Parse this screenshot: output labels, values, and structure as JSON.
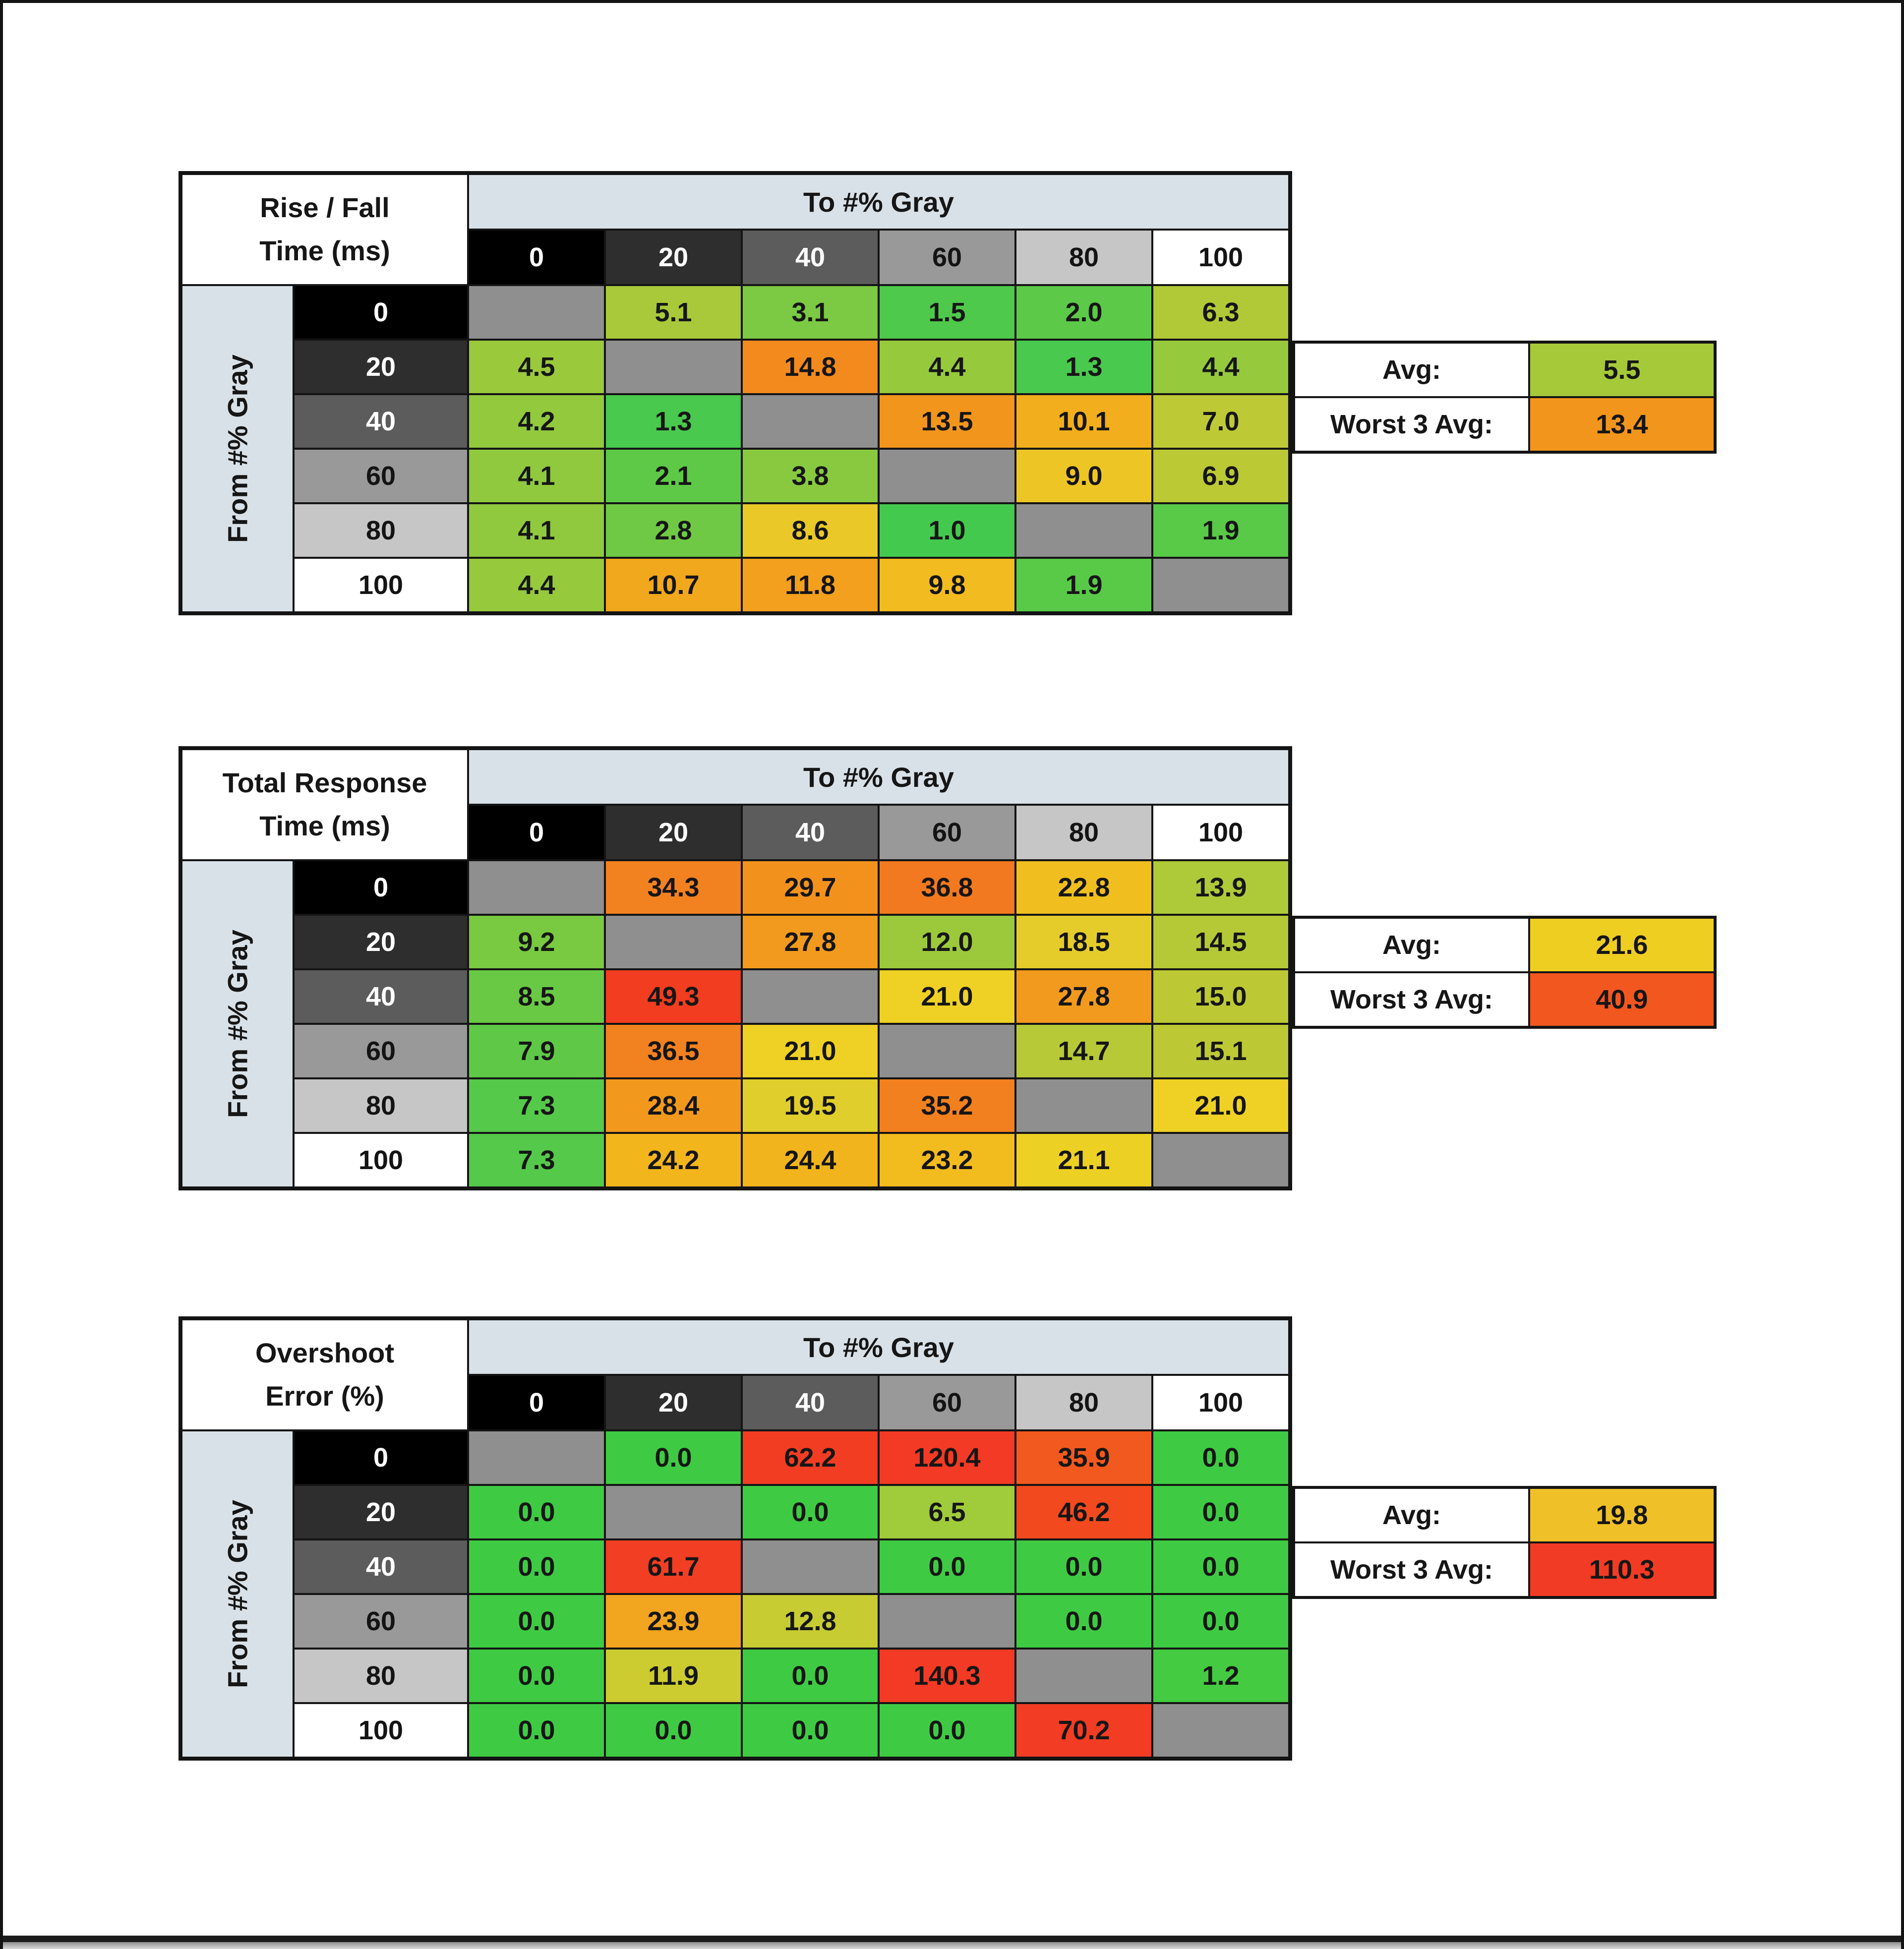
{
  "window": {
    "bg": "#ffffff",
    "frame_color": "#141414",
    "bottom_bar_color": "#8d8d8d"
  },
  "shared": {
    "avg_label": "Avg:",
    "worst_label": "Worst 3 Avg:",
    "band_bg": "#d9e1e8",
    "diag_bg": "#8f8f8f",
    "value_text_color": "#161616",
    "header_scale": [
      {
        "label": "0",
        "bg": "#000000",
        "fg": "#ffffff"
      },
      {
        "label": "20",
        "bg": "#2e2e2e",
        "fg": "#ffffff"
      },
      {
        "label": "40",
        "bg": "#5c5c5c",
        "fg": "#ffffff"
      },
      {
        "label": "60",
        "bg": "#999999",
        "fg": "#141414"
      },
      {
        "label": "80",
        "bg": "#c6c6c6",
        "fg": "#141414"
      },
      {
        "label": "100",
        "bg": "#ffffff",
        "fg": "#141414"
      }
    ]
  },
  "chart_data": [
    {
      "type": "heatmap",
      "name": "rise-fall-time",
      "title_lines": [
        "Rise / Fall",
        "Time (ms)"
      ],
      "col_axis_label": "To #% Gray",
      "row_axis_label": "From #% Gray",
      "gray_levels": [
        "0",
        "20",
        "40",
        "60",
        "80",
        "100"
      ],
      "rows": [
        {
          "from": "0",
          "cells": [
            null,
            {
              "v": "5.1",
              "bg": "#a9c93a"
            },
            {
              "v": "3.1",
              "bg": "#7cc943"
            },
            {
              "v": "1.5",
              "bg": "#4fc94b"
            },
            {
              "v": "2.0",
              "bg": "#5cc948"
            },
            {
              "v": "6.3",
              "bg": "#b2c937"
            }
          ]
        },
        {
          "from": "20",
          "cells": [
            {
              "v": "4.5",
              "bg": "#9ac93c"
            },
            null,
            {
              "v": "14.8",
              "bg": "#f28a1e"
            },
            {
              "v": "4.4",
              "bg": "#97c93c"
            },
            {
              "v": "1.3",
              "bg": "#49c94d"
            },
            {
              "v": "4.4",
              "bg": "#97c93c"
            }
          ]
        },
        {
          "from": "40",
          "cells": [
            {
              "v": "4.2",
              "bg": "#92c93d"
            },
            {
              "v": "1.3",
              "bg": "#49c94d"
            },
            null,
            {
              "v": "13.5",
              "bg": "#f2951d"
            },
            {
              "v": "10.1",
              "bg": "#f2ae1c"
            },
            {
              "v": "7.0",
              "bg": "#bdc935"
            }
          ]
        },
        {
          "from": "60",
          "cells": [
            {
              "v": "4.1",
              "bg": "#90c93d"
            },
            {
              "v": "2.1",
              "bg": "#5ec947"
            },
            {
              "v": "3.8",
              "bg": "#89c940"
            },
            null,
            {
              "v": "9.0",
              "bg": "#edc525"
            },
            {
              "v": "6.9",
              "bg": "#bbc935"
            }
          ]
        },
        {
          "from": "80",
          "cells": [
            {
              "v": "4.1",
              "bg": "#90c93d"
            },
            {
              "v": "2.8",
              "bg": "#6fc944"
            },
            {
              "v": "8.6",
              "bg": "#e9c828"
            },
            {
              "v": "1.0",
              "bg": "#44c94f"
            },
            null,
            {
              "v": "1.9",
              "bg": "#59c948"
            }
          ]
        },
        {
          "from": "100",
          "cells": [
            {
              "v": "4.4",
              "bg": "#97c93c"
            },
            {
              "v": "10.7",
              "bg": "#f2a81c"
            },
            {
              "v": "11.8",
              "bg": "#f2a01d"
            },
            {
              "v": "9.8",
              "bg": "#f2bb20"
            },
            {
              "v": "1.9",
              "bg": "#59c948"
            },
            null
          ]
        }
      ],
      "summary": {
        "avg": "5.5",
        "avg_bg": "#a6c93a",
        "worst": "13.4",
        "worst_bg": "#f2951d"
      }
    },
    {
      "type": "heatmap",
      "name": "total-response-time",
      "title_lines": [
        "Total Response",
        "Time (ms)"
      ],
      "col_axis_label": "To #% Gray",
      "row_axis_label": "From #% Gray",
      "gray_levels": [
        "0",
        "20",
        "40",
        "60",
        "80",
        "100"
      ],
      "rows": [
        {
          "from": "0",
          "cells": [
            null,
            {
              "v": "34.3",
              "bg": "#f2821f"
            },
            {
              "v": "29.7",
              "bg": "#f2921d"
            },
            {
              "v": "36.8",
              "bg": "#f2791f"
            },
            {
              "v": "22.8",
              "bg": "#f0bf1f"
            },
            {
              "v": "13.9",
              "bg": "#aeca38"
            }
          ]
        },
        {
          "from": "20",
          "cells": [
            {
              "v": "9.2",
              "bg": "#79c941"
            },
            null,
            {
              "v": "27.8",
              "bg": "#f29a1d"
            },
            {
              "v": "12.0",
              "bg": "#9cc93b"
            },
            {
              "v": "18.5",
              "bg": "#e5cc2a"
            },
            {
              "v": "14.5",
              "bg": "#b5c936"
            }
          ]
        },
        {
          "from": "40",
          "cells": [
            {
              "v": "8.5",
              "bg": "#6ac944"
            },
            {
              "v": "49.3",
              "bg": "#f23d20"
            },
            null,
            {
              "v": "21.0",
              "bg": "#eed124"
            },
            {
              "v": "27.8",
              "bg": "#f29a1d"
            },
            {
              "v": "15.0",
              "bg": "#bcc934"
            }
          ]
        },
        {
          "from": "60",
          "cells": [
            {
              "v": "7.9",
              "bg": "#5fc947"
            },
            {
              "v": "36.5",
              "bg": "#f2811f"
            },
            {
              "v": "21.0",
              "bg": "#eed124"
            },
            null,
            {
              "v": "14.7",
              "bg": "#b7c936"
            },
            {
              "v": "15.1",
              "bg": "#bdc934"
            }
          ]
        },
        {
          "from": "80",
          "cells": [
            {
              "v": "7.3",
              "bg": "#55c94a"
            },
            {
              "v": "28.4",
              "bg": "#f2991d"
            },
            {
              "v": "19.5",
              "bg": "#e0ce2c"
            },
            {
              "v": "35.2",
              "bg": "#f2801f"
            },
            null,
            {
              "v": "21.0",
              "bg": "#eed124"
            }
          ]
        },
        {
          "from": "100",
          "cells": [
            {
              "v": "7.3",
              "bg": "#55c94a"
            },
            {
              "v": "24.2",
              "bg": "#f2b51c"
            },
            {
              "v": "24.4",
              "bg": "#f2b41c"
            },
            {
              "v": "23.2",
              "bg": "#f2bb1e"
            },
            {
              "v": "21.1",
              "bg": "#edd024"
            },
            null
          ]
        }
      ],
      "summary": {
        "avg": "21.6",
        "avg_bg": "#efce22",
        "worst": "40.9",
        "worst_bg": "#f2571f"
      }
    },
    {
      "type": "heatmap",
      "name": "overshoot-error",
      "title_lines": [
        "Overshoot",
        "Error (%)"
      ],
      "col_axis_label": "To #% Gray",
      "row_axis_label": "From #% Gray",
      "gray_levels": [
        "0",
        "20",
        "40",
        "60",
        "80",
        "100"
      ],
      "rows": [
        {
          "from": "0",
          "cells": [
            null,
            {
              "v": "0.0",
              "bg": "#3ecb43"
            },
            {
              "v": "62.2",
              "bg": "#f23d23"
            },
            {
              "v": "120.4",
              "bg": "#f23a25"
            },
            {
              "v": "35.9",
              "bg": "#f2591e"
            },
            {
              "v": "0.0",
              "bg": "#3ecb43"
            }
          ]
        },
        {
          "from": "20",
          "cells": [
            {
              "v": "0.0",
              "bg": "#3ecb43"
            },
            null,
            {
              "v": "0.0",
              "bg": "#3ecb43"
            },
            {
              "v": "6.5",
              "bg": "#a0cb3a"
            },
            {
              "v": "46.2",
              "bg": "#f2491f"
            },
            {
              "v": "0.0",
              "bg": "#3ecb43"
            }
          ]
        },
        {
          "from": "40",
          "cells": [
            {
              "v": "0.0",
              "bg": "#3ecb43"
            },
            {
              "v": "61.7",
              "bg": "#f23e23"
            },
            null,
            {
              "v": "0.0",
              "bg": "#3ecb43"
            },
            {
              "v": "0.0",
              "bg": "#3ecb43"
            },
            {
              "v": "0.0",
              "bg": "#3ecb43"
            }
          ]
        },
        {
          "from": "60",
          "cells": [
            {
              "v": "0.0",
              "bg": "#3ecb43"
            },
            {
              "v": "23.9",
              "bg": "#f2a51e"
            },
            {
              "v": "12.8",
              "bg": "#c6cc32"
            },
            null,
            {
              "v": "0.0",
              "bg": "#3ecb43"
            },
            {
              "v": "0.0",
              "bg": "#3ecb43"
            }
          ]
        },
        {
          "from": "80",
          "cells": [
            {
              "v": "0.0",
              "bg": "#3ecb43"
            },
            {
              "v": "11.9",
              "bg": "#cccc31"
            },
            {
              "v": "0.0",
              "bg": "#3ecb43"
            },
            {
              "v": "140.3",
              "bg": "#f23a25"
            },
            null,
            {
              "v": "1.2",
              "bg": "#44cb41"
            }
          ]
        },
        {
          "from": "100",
          "cells": [
            {
              "v": "0.0",
              "bg": "#3ecb43"
            },
            {
              "v": "0.0",
              "bg": "#3ecb43"
            },
            {
              "v": "0.0",
              "bg": "#3ecb43"
            },
            {
              "v": "0.0",
              "bg": "#3ecb43"
            },
            {
              "v": "70.2",
              "bg": "#f23c24"
            },
            null
          ]
        }
      ],
      "summary": {
        "avg": "19.8",
        "avg_bg": "#efc028",
        "worst": "110.3",
        "worst_bg": "#f23b24"
      }
    }
  ]
}
